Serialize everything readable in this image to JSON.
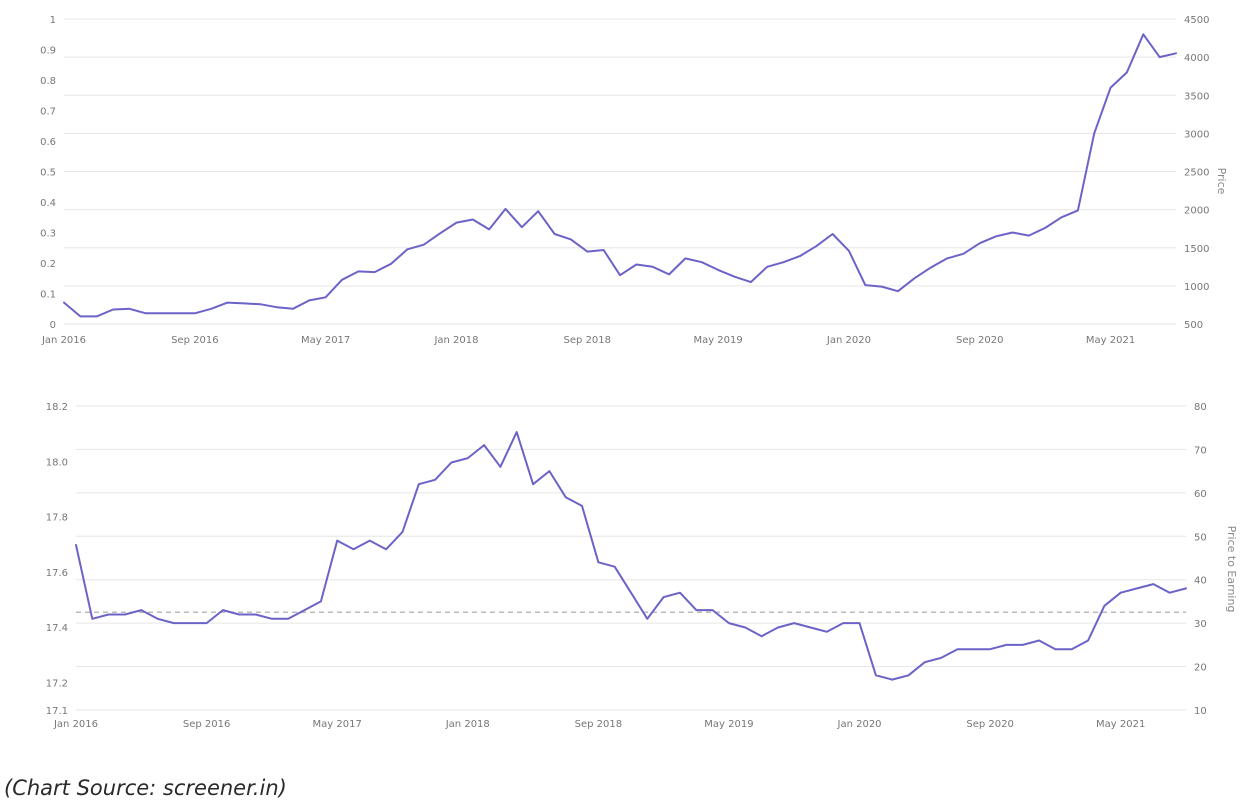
{
  "caption": "(Chart Source: screener.in)",
  "colors": {
    "line": "#6b63c8",
    "grid": "#e6e6e6",
    "median": "#bbbbbb",
    "text": "#777777"
  },
  "chart_data": [
    {
      "type": "line",
      "title": "",
      "x_ticks": [
        "Jan 2016",
        "Sep 2016",
        "May 2017",
        "Jan 2018",
        "Sep 2018",
        "May 2019",
        "Jan 2020",
        "Sep 2020",
        "May 2021"
      ],
      "xlim": [
        "2016-01",
        "2021-09"
      ],
      "left_axis": {
        "ticks": [
          "0",
          "0.1",
          "0.2",
          "0.3",
          "0.4",
          "0.5",
          "0.6",
          "0.7",
          "0.8",
          "0.9",
          "1"
        ],
        "ylim": [
          0,
          1
        ],
        "label": ""
      },
      "right_axis": {
        "ticks": [
          "500",
          "1000",
          "1500",
          "2000",
          "2500",
          "3000",
          "3500",
          "4000",
          "4500"
        ],
        "ylim": [
          500,
          4500
        ],
        "label": "Price"
      },
      "grid": true,
      "series": [
        {
          "axis": "right",
          "x": [
            "2016-01",
            "2016-02",
            "2016-03",
            "2016-04",
            "2016-05",
            "2016-06",
            "2016-07",
            "2016-08",
            "2016-09",
            "2016-10",
            "2016-11",
            "2016-12",
            "2017-01",
            "2017-02",
            "2017-03",
            "2017-04",
            "2017-05",
            "2017-06",
            "2017-07",
            "2017-08",
            "2017-09",
            "2017-10",
            "2017-11",
            "2017-12",
            "2018-01",
            "2018-02",
            "2018-03",
            "2018-04",
            "2018-05",
            "2018-06",
            "2018-07",
            "2018-08",
            "2018-09",
            "2018-10",
            "2018-11",
            "2018-12",
            "2019-01",
            "2019-02",
            "2019-03",
            "2019-04",
            "2019-05",
            "2019-06",
            "2019-07",
            "2019-08",
            "2019-09",
            "2019-10",
            "2019-11",
            "2019-12",
            "2020-01",
            "2020-02",
            "2020-03",
            "2020-04",
            "2020-05",
            "2020-06",
            "2020-07",
            "2020-08",
            "2020-09",
            "2020-10",
            "2020-11",
            "2020-12",
            "2021-01",
            "2021-02",
            "2021-03",
            "2021-04",
            "2021-05",
            "2021-06",
            "2021-07",
            "2021-08",
            "2021-09"
          ],
          "values": [
            780,
            600,
            600,
            690,
            700,
            640,
            640,
            640,
            640,
            700,
            780,
            770,
            760,
            720,
            700,
            810,
            850,
            1080,
            1190,
            1180,
            1290,
            1480,
            1540,
            1690,
            1830,
            1870,
            1740,
            2010,
            1770,
            1980,
            1680,
            1610,
            1450,
            1470,
            1140,
            1280,
            1250,
            1150,
            1360,
            1310,
            1210,
            1120,
            1050,
            1250,
            1310,
            1390,
            1520,
            1680,
            1460,
            1010,
            990,
            930,
            1100,
            1240,
            1360,
            1420,
            1560,
            1650,
            1700,
            1660,
            1760,
            1900,
            1990,
            3000,
            3600,
            3800,
            4300,
            4000,
            4050
          ]
        }
      ]
    },
    {
      "type": "line",
      "title": "",
      "x_ticks": [
        "Jan 2016",
        "Sep 2016",
        "May 2017",
        "Jan 2018",
        "Sep 2018",
        "May 2019",
        "Jan 2020",
        "Sep 2020",
        "May 2021"
      ],
      "xlim": [
        "2016-01",
        "2021-09"
      ],
      "left_axis": {
        "ticks": [
          "17.1",
          "17.2",
          "17.4",
          "17.6",
          "17.8",
          "18.0",
          "18.2"
        ],
        "ylim": [
          17.1,
          18.2
        ],
        "label": ""
      },
      "right_axis": {
        "ticks": [
          "10",
          "20",
          "30",
          "40",
          "50",
          "60",
          "70",
          "80"
        ],
        "ylim": [
          10,
          80
        ],
        "label": "Price to Earning"
      },
      "grid": true,
      "median_line": {
        "axis": "right",
        "value": 32.5
      },
      "series": [
        {
          "axis": "right",
          "x": [
            "2016-01",
            "2016-02",
            "2016-03",
            "2016-04",
            "2016-05",
            "2016-06",
            "2016-07",
            "2016-08",
            "2016-09",
            "2016-10",
            "2016-11",
            "2016-12",
            "2017-01",
            "2017-02",
            "2017-03",
            "2017-04",
            "2017-05",
            "2017-06",
            "2017-07",
            "2017-08",
            "2017-09",
            "2017-10",
            "2017-11",
            "2017-12",
            "2018-01",
            "2018-02",
            "2018-03",
            "2018-04",
            "2018-05",
            "2018-06",
            "2018-07",
            "2018-08",
            "2018-09",
            "2018-10",
            "2018-11",
            "2018-12",
            "2019-01",
            "2019-02",
            "2019-03",
            "2019-04",
            "2019-05",
            "2019-06",
            "2019-07",
            "2019-08",
            "2019-09",
            "2019-10",
            "2019-11",
            "2019-12",
            "2020-01",
            "2020-02",
            "2020-03",
            "2020-04",
            "2020-05",
            "2020-06",
            "2020-07",
            "2020-08",
            "2020-09",
            "2020-10",
            "2020-11",
            "2020-12",
            "2021-01",
            "2021-02",
            "2021-03",
            "2021-04",
            "2021-05",
            "2021-06",
            "2021-07",
            "2021-08",
            "2021-09"
          ],
          "values": [
            48,
            31,
            32,
            32,
            33,
            31,
            30,
            30,
            30,
            33,
            32,
            32,
            31,
            31,
            33,
            35,
            49,
            47,
            49,
            47,
            51,
            62,
            63,
            67,
            68,
            71,
            66,
            74,
            62,
            65,
            59,
            57,
            44,
            43,
            37,
            31,
            36,
            37,
            33,
            33,
            30,
            29,
            27,
            29,
            30,
            29,
            28,
            30,
            30,
            18,
            17,
            18,
            21,
            22,
            24,
            24,
            24,
            25,
            25,
            26,
            24,
            24,
            26,
            34,
            37,
            38,
            39,
            37,
            38
          ]
        }
      ]
    }
  ]
}
